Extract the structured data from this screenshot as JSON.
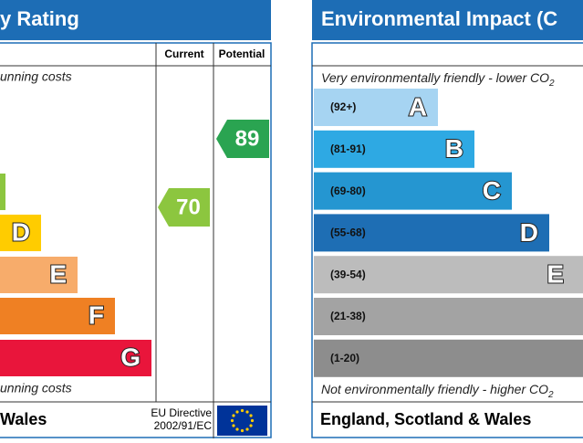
{
  "left": {
    "title": "y Rating",
    "columns": [
      "Current",
      "Potential"
    ],
    "top_note": "unning costs",
    "bands": [
      {
        "letter": "D",
        "color": "#ffcc00",
        "right": 45
      },
      {
        "letter": "E",
        "color": "#f7ac6b",
        "right": 85
      },
      {
        "letter": "F",
        "color": "#ef8023",
        "right": 126
      },
      {
        "letter": "G",
        "color": "#e9153b",
        "right": 166
      }
    ],
    "current": {
      "value": 70,
      "color": "#8cc63f"
    },
    "potential": {
      "value": 89,
      "color": "#2aa451"
    },
    "bottom_note": "unning costs",
    "footer": "Wales",
    "directive": [
      "EU Directive",
      "2002/91/EC"
    ]
  },
  "right": {
    "title": "Environmental Impact (C",
    "top_note": "Very environmentally friendly - lower CO",
    "top_note_sub": "2",
    "bands": [
      {
        "range": "(92+)",
        "letter": "A",
        "color": "#a6d4f2",
        "right": 480
      },
      {
        "range": "(81-91)",
        "letter": "B",
        "color": "#2ea9e3",
        "right": 520
      },
      {
        "range": "(69-80)",
        "letter": "C",
        "color": "#2596d1",
        "right": 561
      },
      {
        "range": "(55-68)",
        "letter": "D",
        "color": "#1e6eb4",
        "right": 602
      },
      {
        "range": "(39-54)",
        "letter": "E",
        "color": "#bcbcbc",
        "right": 639
      },
      {
        "range": "(21-38)",
        "color": "#a3a3a3",
        "right": 639
      },
      {
        "range": "(1-20)",
        "color": "#8d8d8d",
        "right": 639
      }
    ],
    "bottom_note": "Not environmentally friendly - higher CO",
    "bottom_note_sub": "2",
    "footer": "England, Scotland & Wales"
  }
}
